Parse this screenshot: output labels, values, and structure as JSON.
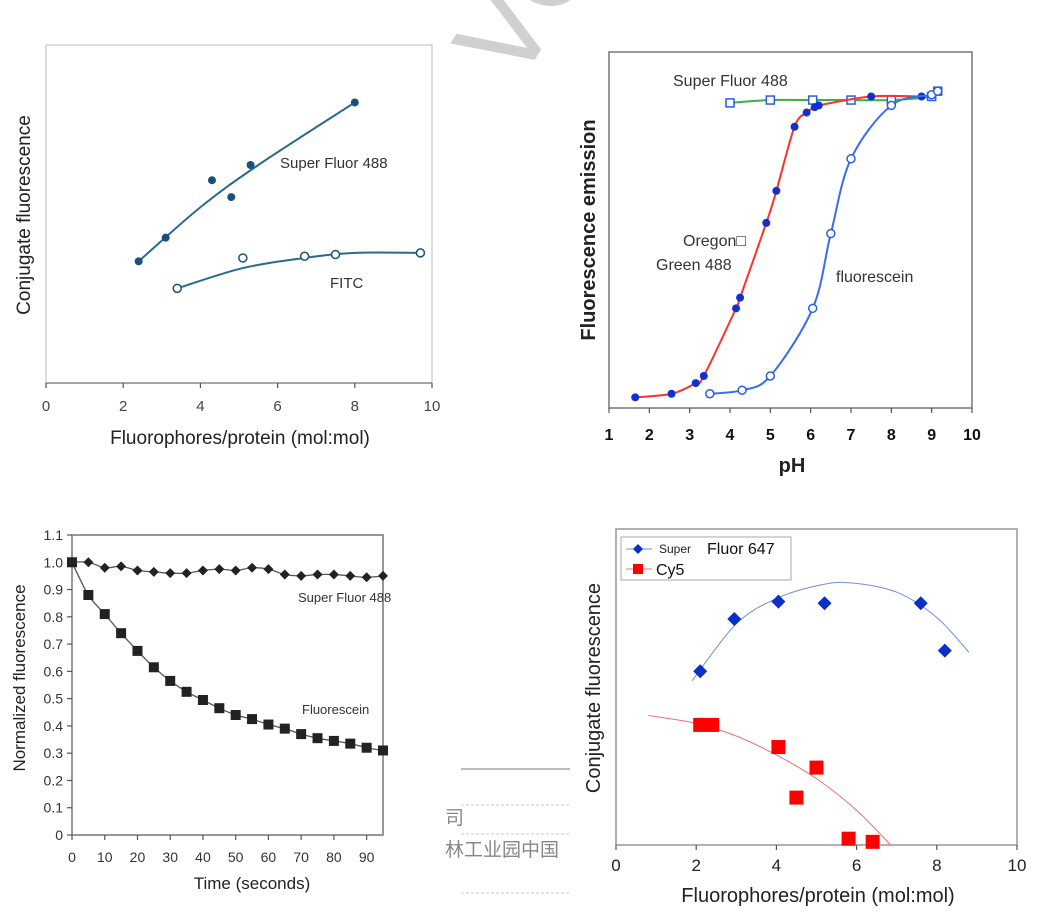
{
  "watermark": "VO",
  "background_fragments": [
    "司",
    "林工业园中国"
  ],
  "chart_data": [
    {
      "type": "scatter",
      "xlabel": "Fluorophores/protein (mol:mol)",
      "ylabel": "Conjugate fluorescence",
      "xlim": [
        0,
        10
      ],
      "ylim_relative": [
        0,
        1
      ],
      "xticks": [
        "0",
        "2",
        "4",
        "6",
        "8",
        "10"
      ],
      "grid": false,
      "series": [
        {
          "name": "Super Fluor 488",
          "marker": "filled-circle",
          "color": "#1b4f7e",
          "x": [
            2.4,
            3.1,
            4.3,
            4.8,
            5.3,
            8.0
          ],
          "y": [
            0.36,
            0.43,
            0.6,
            0.55,
            0.645,
            0.83
          ],
          "fit_x": [
            2.4,
            4.0,
            5.5,
            8.0
          ],
          "fit_y": [
            0.36,
            0.52,
            0.645,
            0.83
          ]
        },
        {
          "name": "FITC",
          "marker": "open-circle",
          "color": "#1b4f7e",
          "x": [
            3.4,
            5.1,
            6.7,
            7.5,
            9.7
          ],
          "y": [
            0.28,
            0.37,
            0.375,
            0.38,
            0.385
          ],
          "fit_x": [
            3.4,
            5.1,
            6.7,
            8.0,
            9.7
          ],
          "fit_y": [
            0.28,
            0.34,
            0.37,
            0.385,
            0.385
          ]
        }
      ]
    },
    {
      "type": "line",
      "xlabel": "pH",
      "ylabel": "Fluorescence emission",
      "xlim": [
        1,
        10
      ],
      "ylim_relative": [
        0,
        1
      ],
      "xticks": [
        "1",
        "2",
        "3",
        "4",
        "5",
        "6",
        "7",
        "8",
        "9",
        "10"
      ],
      "grid": false,
      "series": [
        {
          "name": "Super Fluor 488",
          "marker": "open-square",
          "color": "#2b5ce8",
          "line_color": "#3cb043",
          "x": [
            4.0,
            5.0,
            6.05,
            7.0,
            8.0,
            9.0,
            9.15
          ],
          "y": [
            0.857,
            0.865,
            0.865,
            0.865,
            0.865,
            0.875,
            0.89
          ]
        },
        {
          "name": "Oregon□ Green 488",
          "marker": "filled-circle",
          "color": "#1030d0",
          "line_color": "#ff3030",
          "x": [
            1.65,
            2.55,
            3.15,
            3.35,
            4.15,
            4.25,
            4.9,
            5.15,
            5.6,
            5.9,
            6.1,
            6.2,
            7.5,
            8.75
          ],
          "y": [
            0.03,
            0.04,
            0.07,
            0.09,
            0.28,
            0.31,
            0.52,
            0.61,
            0.79,
            0.83,
            0.845,
            0.85,
            0.875,
            0.875
          ]
        },
        {
          "name": "fluorescein",
          "marker": "open-circle",
          "color": "#2b5ce8",
          "line_color": "#3a6cf0",
          "x": [
            3.5,
            4.3,
            5.0,
            6.05,
            6.5,
            7.0,
            8.0,
            9.0,
            9.15
          ],
          "y": [
            0.04,
            0.05,
            0.09,
            0.28,
            0.49,
            0.7,
            0.85,
            0.88,
            0.89
          ]
        }
      ]
    },
    {
      "type": "line",
      "xlabel": "Time (seconds)",
      "ylabel": "Normalized fluorescence",
      "xlim": [
        0,
        95
      ],
      "ylim": [
        0,
        1.1
      ],
      "xticks": [
        "0",
        "10",
        "20",
        "30",
        "40",
        "50",
        "60",
        "70",
        "80",
        "90"
      ],
      "yticks": [
        "0",
        "0.1",
        "0.2",
        "0.3",
        "0.4",
        "0.5",
        "0.6",
        "0.7",
        "0.8",
        "0.9",
        "1.0",
        "1.1"
      ],
      "grid": false,
      "x": [
        0,
        5,
        10,
        15,
        20,
        25,
        30,
        35,
        40,
        45,
        50,
        55,
        60,
        65,
        70,
        75,
        80,
        85,
        90,
        95
      ],
      "series": [
        {
          "name": "Super Fluor 488",
          "marker": "diamond",
          "color": "#222222",
          "values": [
            1.0,
            1.0,
            0.98,
            0.985,
            0.97,
            0.965,
            0.96,
            0.96,
            0.97,
            0.975,
            0.97,
            0.98,
            0.975,
            0.955,
            0.95,
            0.955,
            0.955,
            0.95,
            0.945,
            0.95
          ]
        },
        {
          "name": "Fluorescein",
          "marker": "square",
          "color": "#222222",
          "values": [
            1.0,
            0.88,
            0.81,
            0.74,
            0.675,
            0.615,
            0.565,
            0.525,
            0.495,
            0.465,
            0.44,
            0.425,
            0.405,
            0.39,
            0.37,
            0.355,
            0.345,
            0.335,
            0.32,
            0.31
          ]
        }
      ]
    },
    {
      "type": "scatter",
      "xlabel": "Fluorophores/protein (mol:mol)",
      "ylabel": "Conjugate fluorescence",
      "xlim": [
        0,
        10
      ],
      "ylim_relative": [
        0,
        1
      ],
      "xticks": [
        "0",
        "2",
        "4",
        "6",
        "8",
        "10"
      ],
      "legend": "top-left",
      "grid": false,
      "series": [
        {
          "name": "Super Fluor 647",
          "legend_parts": [
            "Super",
            "Fluor 647"
          ],
          "marker": "diamond",
          "color": "#0a2ec8",
          "line_color": "#6f8fd8",
          "x": [
            2.1,
            2.95,
            4.05,
            5.2,
            7.6,
            8.2
          ],
          "y": [
            0.55,
            0.715,
            0.77,
            0.765,
            0.765,
            0.615
          ],
          "fit_x": [
            1.9,
            3.0,
            4.0,
            5.0,
            5.8,
            7.0,
            8.0,
            8.8
          ],
          "fit_y": [
            0.52,
            0.7,
            0.78,
            0.82,
            0.83,
            0.8,
            0.72,
            0.61
          ]
        },
        {
          "name": "Cy5",
          "marker": "square",
          "color": "#ff0000",
          "line_color": "#f07070",
          "x": [
            2.1,
            2.4,
            4.05,
            5.0,
            4.5,
            5.8,
            6.4
          ],
          "y": [
            0.38,
            0.38,
            0.31,
            0.245,
            0.15,
            0.02,
            0.01
          ],
          "fit_x": [
            0.8,
            2.0,
            3.0,
            4.0,
            5.0,
            6.0,
            6.85
          ],
          "fit_y": [
            0.41,
            0.385,
            0.345,
            0.285,
            0.21,
            0.11,
            0.0
          ]
        }
      ]
    }
  ]
}
